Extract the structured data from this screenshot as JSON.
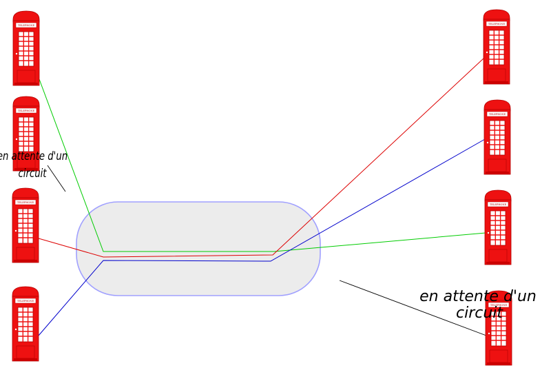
{
  "colors": {
    "booth_red": "#ee1111",
    "booth_dark": "#b00000",
    "network_fill": "#ececec",
    "network_stroke": "#a0a0ff",
    "circuit_green": "#00cc00",
    "circuit_red": "#dd0000",
    "circuit_blue": "#0000cc",
    "note_line": "#000000"
  },
  "booth_sign": "TELEPHONE",
  "booths": [
    {
      "name": "booth-left-1",
      "side": "left"
    },
    {
      "name": "booth-left-2",
      "side": "left"
    },
    {
      "name": "booth-left-3",
      "side": "left"
    },
    {
      "name": "booth-left-4",
      "side": "left"
    },
    {
      "name": "booth-right-1",
      "side": "right"
    },
    {
      "name": "booth-right-2",
      "side": "right"
    },
    {
      "name": "booth-right-3",
      "side": "right"
    },
    {
      "name": "booth-right-4",
      "side": "right"
    }
  ],
  "network_icon": "network-cloud-icon",
  "circuits": [
    {
      "name": "green-circuit",
      "color": "circuit_green",
      "from": "booth-left-1",
      "to": "booth-right-3"
    },
    {
      "name": "red-circuit",
      "color": "circuit_red",
      "from": "booth-left-3",
      "to": "booth-right-1"
    },
    {
      "name": "blue-circuit",
      "color": "circuit_blue",
      "from": "booth-left-4",
      "to": "booth-right-2"
    }
  ],
  "notes": {
    "left": {
      "line1": "en attente d'un",
      "line2": "circuit"
    },
    "right": {
      "line1": "en attente d'un",
      "line2": "circuit"
    }
  }
}
